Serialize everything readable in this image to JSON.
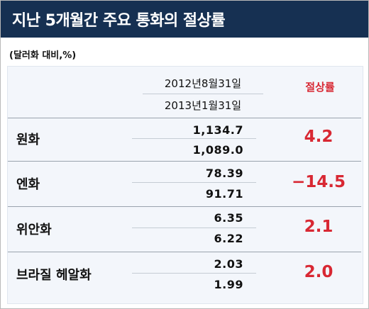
{
  "header": {
    "title": "지난 5개월간 주요 통화의 절상률"
  },
  "unit_note": "(달러화 대비,%)",
  "columns": {
    "date_start": "2012년8월31일",
    "date_end": "2013년1월31일",
    "rate_label": "절상률"
  },
  "rows": [
    {
      "currency": "원화",
      "value_start": "1,134.7",
      "value_end": "1,089.0",
      "rate": "4.2"
    },
    {
      "currency": "엔화",
      "value_start": "78.39",
      "value_end": "91.71",
      "rate": "−14.5"
    },
    {
      "currency": "위안화",
      "value_start": "6.35",
      "value_end": "6.22",
      "rate": "2.1"
    },
    {
      "currency": "브라질 헤알화",
      "value_start": "2.03",
      "value_end": "1.99",
      "rate": "2.0"
    }
  ],
  "colors": {
    "header_bg": "#163052",
    "accent": "#d82833",
    "panel_bg": "#f3f6fb"
  }
}
